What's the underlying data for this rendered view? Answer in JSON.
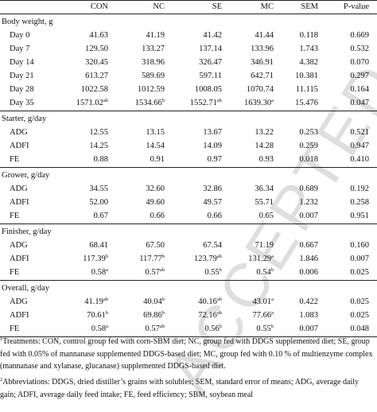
{
  "header": {
    "col1": "CON",
    "col2": "NC",
    "col3": "SE",
    "col4": "MC",
    "col5": "SEM",
    "col6": "P-value"
  },
  "sections": [
    {
      "title": "Body weight, g",
      "rows": [
        {
          "label": "Day 0",
          "v": [
            [
              "41.63",
              ""
            ],
            [
              "41.19",
              ""
            ],
            [
              "41.42",
              ""
            ],
            [
              "41.44",
              ""
            ],
            [
              "0.118",
              ""
            ],
            [
              "0.669",
              ""
            ]
          ]
        },
        {
          "label": "Day 7",
          "v": [
            [
              "129.50",
              ""
            ],
            [
              "133.27",
              ""
            ],
            [
              "137.14",
              ""
            ],
            [
              "133.96",
              ""
            ],
            [
              "1.743",
              ""
            ],
            [
              "0.532",
              ""
            ]
          ]
        },
        {
          "label": "Day 14",
          "v": [
            [
              "320.45",
              ""
            ],
            [
              "318.96",
              ""
            ],
            [
              "326.47",
              ""
            ],
            [
              "346.91",
              ""
            ],
            [
              "4.382",
              ""
            ],
            [
              "0.070",
              ""
            ]
          ]
        },
        {
          "label": "Day 21",
          "v": [
            [
              "613.27",
              ""
            ],
            [
              "589.69",
              ""
            ],
            [
              "597.11",
              ""
            ],
            [
              "642.71",
              ""
            ],
            [
              "10.381",
              ""
            ],
            [
              "0.297",
              ""
            ]
          ]
        },
        {
          "label": "Day 28",
          "v": [
            [
              "1022.58",
              ""
            ],
            [
              "1012.59",
              ""
            ],
            [
              "1008.05",
              ""
            ],
            [
              "1070.74",
              ""
            ],
            [
              "11.115",
              ""
            ],
            [
              "0.164",
              ""
            ]
          ]
        },
        {
          "label": "Day 35",
          "v": [
            [
              "1571.02",
              "ab"
            ],
            [
              "1534.66",
              "b"
            ],
            [
              "1552.71",
              "ab"
            ],
            [
              "1639.30",
              "a"
            ],
            [
              "15.476",
              ""
            ],
            [
              "0.047",
              ""
            ]
          ]
        }
      ]
    },
    {
      "title": "Starter, g/day",
      "rows": [
        {
          "label": "ADG",
          "v": [
            [
              "12.55",
              ""
            ],
            [
              "13.15",
              ""
            ],
            [
              "13.67",
              ""
            ],
            [
              "13.22",
              ""
            ],
            [
              "0.253",
              ""
            ],
            [
              "0.521",
              ""
            ]
          ]
        },
        {
          "label": "ADFI",
          "v": [
            [
              "14.25",
              ""
            ],
            [
              "14.54",
              ""
            ],
            [
              "14.09",
              ""
            ],
            [
              "14.28",
              ""
            ],
            [
              "0.259",
              ""
            ],
            [
              "0.947",
              ""
            ]
          ]
        },
        {
          "label": "FE",
          "v": [
            [
              "0.88",
              ""
            ],
            [
              "0.91",
              ""
            ],
            [
              "0.97",
              ""
            ],
            [
              "0.93",
              ""
            ],
            [
              "0.018",
              ""
            ],
            [
              "0.410",
              ""
            ]
          ]
        }
      ]
    },
    {
      "title": "Grower, g/day",
      "rows": [
        {
          "label": "ADG",
          "v": [
            [
              "34.55",
              ""
            ],
            [
              "32.60",
              ""
            ],
            [
              "32.86",
              ""
            ],
            [
              "36.34",
              ""
            ],
            [
              "0.689",
              ""
            ],
            [
              "0.192",
              ""
            ]
          ]
        },
        {
          "label": "ADFI",
          "v": [
            [
              "52.00",
              ""
            ],
            [
              "49.60",
              ""
            ],
            [
              "49.57",
              ""
            ],
            [
              "55.71",
              ""
            ],
            [
              "1.232",
              ""
            ],
            [
              "0.258",
              ""
            ]
          ]
        },
        {
          "label": "FE",
          "v": [
            [
              "0.67",
              ""
            ],
            [
              "0.66",
              ""
            ],
            [
              "0.66",
              ""
            ],
            [
              "0.65",
              ""
            ],
            [
              "0.007",
              ""
            ],
            [
              "0.951",
              ""
            ]
          ]
        }
      ]
    },
    {
      "title": "Finisher, g/day",
      "rows": [
        {
          "label": "ADG",
          "v": [
            [
              "68.41",
              ""
            ],
            [
              "67.50",
              ""
            ],
            [
              "67.54",
              ""
            ],
            [
              "71.19",
              ""
            ],
            [
              "0.667",
              ""
            ],
            [
              "0.160",
              ""
            ]
          ]
        },
        {
          "label": "ADFI",
          "v": [
            [
              "117.39",
              "b"
            ],
            [
              "117.77",
              "b"
            ],
            [
              "123.79",
              "ab"
            ],
            [
              "131.29",
              "a"
            ],
            [
              "1.846",
              ""
            ],
            [
              "0.007",
              ""
            ]
          ]
        },
        {
          "label": "FE",
          "v": [
            [
              "0.58",
              "a"
            ],
            [
              "0.57",
              "ab"
            ],
            [
              "0.55",
              "b"
            ],
            [
              "0.54",
              "b"
            ],
            [
              "0.006",
              ""
            ],
            [
              "0.025",
              ""
            ]
          ]
        }
      ]
    },
    {
      "title": "Overall, g/day",
      "rows": [
        {
          "label": "ADG",
          "v": [
            [
              "41.19",
              "ab"
            ],
            [
              "40.04",
              "b"
            ],
            [
              "40.16",
              "ab"
            ],
            [
              "43.01",
              "a"
            ],
            [
              "0.422",
              ""
            ],
            [
              "0.025",
              ""
            ]
          ]
        },
        {
          "label": "ADFI",
          "v": [
            [
              "70.61",
              "b"
            ],
            [
              "69.86",
              "b"
            ],
            [
              "72.16",
              "ab"
            ],
            [
              "77.66",
              "a"
            ],
            [
              "1.083",
              ""
            ],
            [
              "0.025",
              ""
            ]
          ]
        },
        {
          "label": "FE",
          "v": [
            [
              "0.58",
              "a"
            ],
            [
              "0.57",
              "ab"
            ],
            [
              "0.56",
              "b"
            ],
            [
              "0.55",
              "b"
            ],
            [
              "0.007",
              ""
            ],
            [
              "0.048",
              ""
            ]
          ]
        }
      ]
    }
  ],
  "footnotes": {
    "note1_marker": "1",
    "note1_text": "Treatments: CON, control group fed with corn-SBM diet; NC, group fed with DDGS supplemented diet; SE, group fed with 0.05% of mannanase supplemented DDGS-based diet; MC, group fed with 0.10 % of multienzyme complex (mannanase and xylanase, glucanase) supplemented DDGS-based diet.",
    "note2_marker": "2",
    "note2_text": "Abbreviations: DDGS, dried distiller’s grains with solubles; SEM, standard error of means; ADG, average daily gain; ADFI, average daily feed intake; FE, feed efficiency; SBM, soybean meal"
  },
  "watermark": "ACCEPTED"
}
